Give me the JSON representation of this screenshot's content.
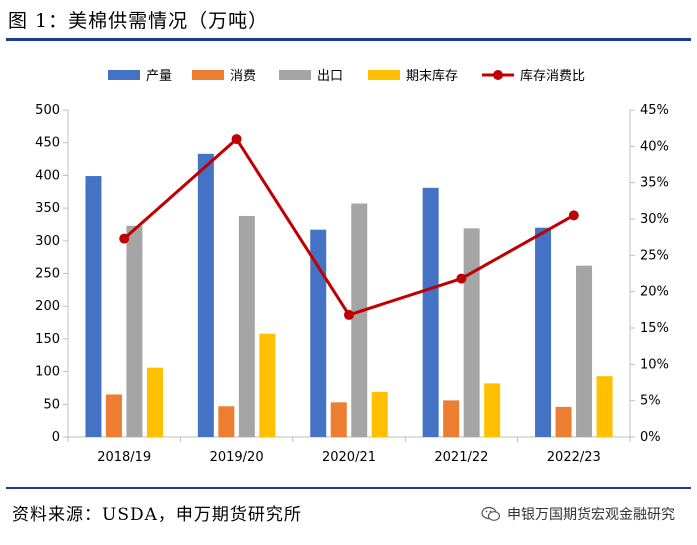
{
  "figure": {
    "title": "图 1：美棉供需情况（万吨）",
    "source": "资料来源：USDA，申万期货研究所",
    "watermark": "申银万国期货宏观金融研究",
    "watermark_icon": "wechat-icon"
  },
  "chart_data": {
    "type": "bar",
    "categories": [
      "2018/19",
      "2019/20",
      "2020/21",
      "2021/22",
      "2022/23"
    ],
    "series": [
      {
        "name": "产量",
        "type": "bar",
        "axis": "left",
        "color": "#4472C4",
        "values": [
          399,
          433,
          317,
          381,
          320
        ]
      },
      {
        "name": "消费",
        "type": "bar",
        "axis": "left",
        "color": "#ED7D31",
        "values": [
          65,
          47,
          53,
          56,
          46
        ]
      },
      {
        "name": "出口",
        "type": "bar",
        "axis": "left",
        "color": "#A5A5A5",
        "values": [
          323,
          338,
          357,
          319,
          262
        ]
      },
      {
        "name": "期末库存",
        "type": "bar",
        "axis": "left",
        "color": "#FFC000",
        "values": [
          106,
          158,
          69,
          82,
          93
        ]
      },
      {
        "name": "库存消费比",
        "type": "line",
        "axis": "right",
        "color": "#C00000",
        "values": [
          27.3,
          41.0,
          16.8,
          21.8,
          30.5
        ]
      }
    ],
    "ylim": [
      0,
      500
    ],
    "yticks": [
      0,
      50,
      100,
      150,
      200,
      250,
      300,
      350,
      400,
      450,
      500
    ],
    "y2lim": [
      0,
      45
    ],
    "y2ticks": [
      "0%",
      "5%",
      "10%",
      "15%",
      "20%",
      "25%",
      "30%",
      "35%",
      "40%",
      "45%"
    ],
    "legend_position": "top",
    "grid": false
  }
}
